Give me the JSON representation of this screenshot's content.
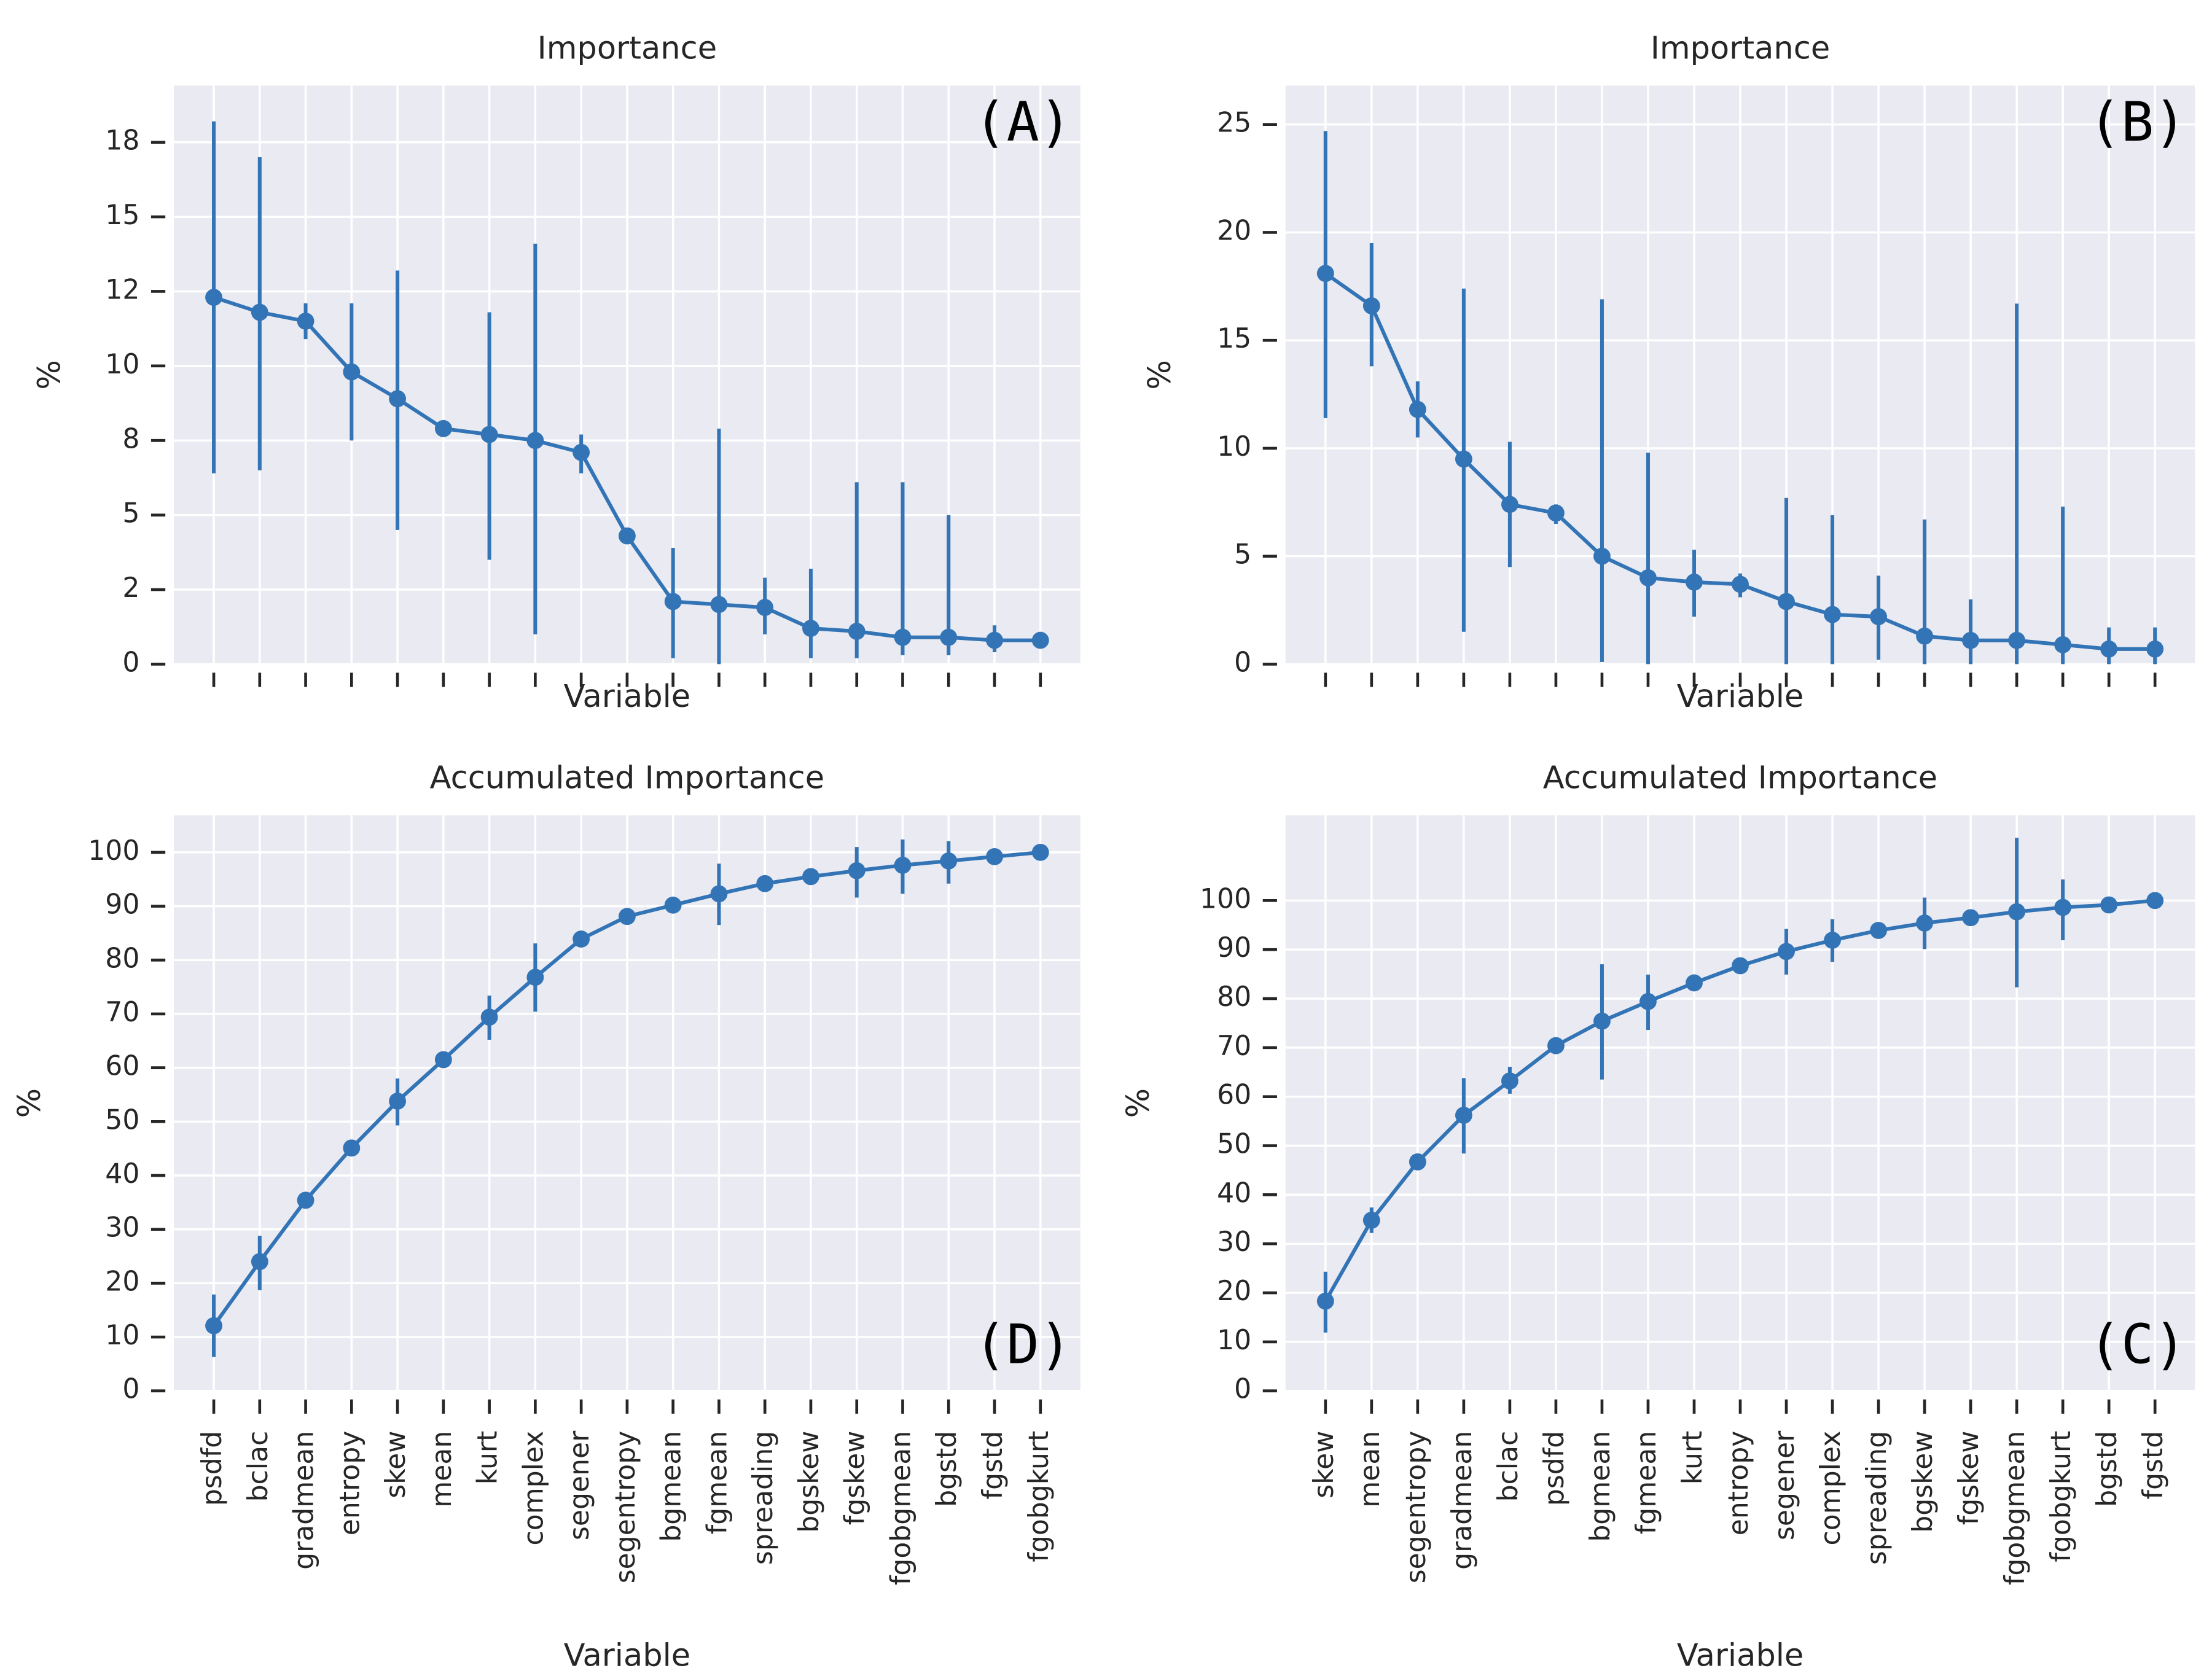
{
  "chart_data": [
    {
      "type": "pointplot",
      "title": "Importance",
      "x_label": "Variable",
      "y_label": "%",
      "annotation": "(A)",
      "color": "#3274b5",
      "grid": true,
      "values": [
        12.3,
        11.8,
        11.5,
        9.8,
        8.9,
        7.9,
        7.7,
        7.5,
        7.1,
        4.3,
        2.1,
        2.0,
        1.9,
        1.2,
        1.1,
        0.9,
        0.9,
        0.8,
        0.8
      ],
      "ci_low": [
        6.4,
        6.5,
        10.9,
        7.5,
        4.5,
        null,
        3.5,
        1.0,
        6.4,
        null,
        0.2,
        0.0,
        1.0,
        0.2,
        0.2,
        0.3,
        0.3,
        0.4,
        null
      ],
      "ci_high": [
        18.2,
        17.0,
        12.1,
        12.1,
        13.2,
        null,
        11.8,
        14.1,
        7.7,
        null,
        3.9,
        7.9,
        2.9,
        3.2,
        6.1,
        6.1,
        5.0,
        1.3,
        null
      ],
      "ylim": [
        0,
        19.4
      ],
      "yticks": [
        0,
        {
          "value": 2.5,
          "label": "2"
        },
        5,
        {
          "value": 7.5,
          "label": "8"
        },
        10,
        {
          "value": 12.5,
          "label": "12"
        },
        15,
        {
          "value": 17.5,
          "label": "18"
        }
      ]
    },
    {
      "type": "pointplot",
      "title": "Importance",
      "x_label": "Variable",
      "y_label": "%",
      "annotation": "(B)",
      "color": "#3274b5",
      "grid": true,
      "values": [
        18.1,
        16.6,
        11.8,
        9.5,
        7.4,
        7.0,
        5.0,
        4.0,
        3.8,
        3.7,
        2.9,
        2.3,
        2.2,
        1.3,
        1.1,
        1.1,
        0.9,
        0.7,
        0.7
      ],
      "ci_low": [
        11.4,
        13.8,
        10.5,
        1.5,
        4.5,
        6.5,
        0.1,
        0.0,
        2.2,
        3.1,
        0.0,
        0.0,
        0.2,
        0.0,
        0.0,
        0.0,
        0.0,
        0.0,
        0.0
      ],
      "ci_high": [
        24.7,
        19.5,
        13.1,
        17.4,
        10.3,
        7.4,
        16.9,
        9.8,
        5.3,
        4.2,
        7.7,
        6.9,
        4.1,
        6.7,
        3.0,
        16.7,
        7.3,
        1.7,
        1.7
      ],
      "ylim": [
        0,
        26.8
      ],
      "yticks": [
        0,
        5,
        10,
        15,
        20,
        25
      ]
    },
    {
      "type": "pointplot",
      "title": "Accumulated Importance",
      "x_label": "Variable",
      "y_label": "%",
      "annotation": "(D)",
      "color": "#3274b5",
      "grid": true,
      "categories": [
        "psdfd",
        "bclac",
        "gradmean",
        "entropy",
        "skew",
        "mean",
        "kurt",
        "complex",
        "segener",
        "segentropy",
        "bgmean",
        "fgmean",
        "spreading",
        "bgskew",
        "fgskew",
        "fgobgmean",
        "bgstd",
        "fgstd",
        "fgobgkurt"
      ],
      "values": [
        12.1,
        24.0,
        35.4,
        45.1,
        53.8,
        61.5,
        69.4,
        76.8,
        83.9,
        88.1,
        90.2,
        92.3,
        94.2,
        95.5,
        96.6,
        97.6,
        98.4,
        99.2,
        100
      ],
      "ci_low": [
        6.3,
        18.7,
        null,
        null,
        49.3,
        null,
        65.2,
        70.4,
        null,
        null,
        null,
        86.5,
        null,
        null,
        91.6,
        92.3,
        94.2,
        null,
        null
      ],
      "ci_high": [
        17.9,
        28.8,
        null,
        null,
        58.0,
        null,
        73.4,
        83.1,
        null,
        null,
        null,
        97.9,
        null,
        null,
        101.0,
        102.4,
        102.1,
        null,
        null
      ],
      "ylim": [
        0,
        106.9
      ],
      "yticks": [
        0,
        10,
        20,
        30,
        40,
        50,
        60,
        70,
        80,
        90,
        100
      ]
    },
    {
      "type": "pointplot",
      "title": "Accumulated Importance",
      "x_label": "Variable",
      "y_label": "%",
      "annotation": "(C)",
      "color": "#3274b5",
      "grid": true,
      "categories": [
        "skew",
        "mean",
        "segentropy",
        "gradmean",
        "bclac",
        "psdfd",
        "bgmean",
        "fgmean",
        "kurt",
        "entropy",
        "segener",
        "complex",
        "spreading",
        "bgskew",
        "fgskew",
        "fgobgmean",
        "fgobgkurt",
        "bgstd",
        "fgstd"
      ],
      "values": [
        18.3,
        34.8,
        46.7,
        56.2,
        63.2,
        70.4,
        75.4,
        79.4,
        83.2,
        86.7,
        89.6,
        91.9,
        93.9,
        95.4,
        96.5,
        97.7,
        98.6,
        99.1,
        100
      ],
      "ci_low": [
        11.9,
        32.2,
        null,
        48.4,
        60.6,
        null,
        63.5,
        73.6,
        null,
        null,
        84.9,
        87.5,
        null,
        90.1,
        null,
        82.3,
        91.9,
        null,
        null
      ],
      "ci_high": [
        24.3,
        37.4,
        null,
        63.8,
        66.1,
        null,
        87.0,
        84.9,
        null,
        null,
        94.2,
        96.2,
        null,
        100.6,
        null,
        112.8,
        104.3,
        null,
        null
      ],
      "ylim": [
        0,
        117.4
      ],
      "yticks": [
        0,
        10,
        20,
        30,
        40,
        50,
        60,
        70,
        80,
        90,
        100
      ]
    }
  ]
}
